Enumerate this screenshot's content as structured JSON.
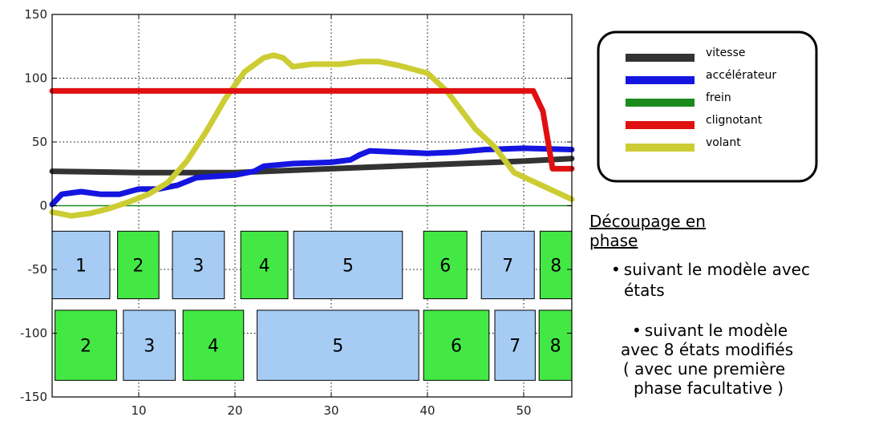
{
  "chart_data": {
    "type": "line",
    "xlim": [
      1,
      55
    ],
    "ylim": [
      -150,
      150
    ],
    "x_ticks": [
      10,
      20,
      30,
      40,
      50
    ],
    "y_ticks": [
      150,
      100,
      50,
      0,
      -50,
      -100,
      -150
    ],
    "grid": true,
    "legend_position": "top-right",
    "series": [
      {
        "name": "vitesse",
        "color": "#333333",
        "points": [
          [
            1,
            27
          ],
          [
            10,
            26
          ],
          [
            20,
            26
          ],
          [
            30,
            29
          ],
          [
            40,
            32
          ],
          [
            50,
            35
          ],
          [
            55,
            37
          ]
        ]
      },
      {
        "name": "accélérateur",
        "color": "#1515e0",
        "points": [
          [
            1,
            1
          ],
          [
            2,
            9
          ],
          [
            4,
            11
          ],
          [
            6,
            9
          ],
          [
            8,
            9
          ],
          [
            10,
            13
          ],
          [
            12,
            13
          ],
          [
            14,
            16
          ],
          [
            16,
            22
          ],
          [
            18,
            23
          ],
          [
            20,
            24
          ],
          [
            22,
            27
          ],
          [
            23,
            31
          ],
          [
            26,
            33
          ],
          [
            30,
            34
          ],
          [
            32,
            36
          ],
          [
            33,
            40
          ],
          [
            34,
            43
          ],
          [
            37,
            42
          ],
          [
            40,
            41
          ],
          [
            43,
            42
          ],
          [
            46,
            44
          ],
          [
            50,
            45
          ],
          [
            55,
            44
          ]
        ]
      },
      {
        "name": "frein",
        "color": "#1a8a1a",
        "points": [
          [
            1,
            0
          ],
          [
            55,
            0
          ]
        ]
      },
      {
        "name": "clignotant",
        "color": "#e01010",
        "points": [
          [
            1,
            90
          ],
          [
            51,
            90
          ],
          [
            52,
            74
          ],
          [
            53,
            29
          ],
          [
            55,
            29
          ]
        ]
      },
      {
        "name": "volant",
        "color": "#cccc33",
        "points": [
          [
            1,
            -5
          ],
          [
            3,
            -8
          ],
          [
            5,
            -6
          ],
          [
            7,
            -2
          ],
          [
            9,
            3
          ],
          [
            11,
            9
          ],
          [
            13,
            18
          ],
          [
            15,
            35
          ],
          [
            17,
            58
          ],
          [
            19,
            84
          ],
          [
            21,
            105
          ],
          [
            23,
            116
          ],
          [
            24,
            118
          ],
          [
            25,
            116
          ],
          [
            26,
            109
          ],
          [
            28,
            111
          ],
          [
            31,
            111
          ],
          [
            33,
            113
          ],
          [
            35,
            113
          ],
          [
            37,
            110
          ],
          [
            39,
            106
          ],
          [
            40,
            104
          ],
          [
            42,
            90
          ],
          [
            44,
            70
          ],
          [
            45,
            60
          ],
          [
            47,
            46
          ],
          [
            49,
            26
          ],
          [
            51,
            19
          ],
          [
            53,
            12
          ],
          [
            55,
            5
          ]
        ]
      }
    ],
    "phase_rows": [
      {
        "y_top": -20,
        "y_bottom": -73,
        "boxes": [
          {
            "label": "1",
            "x0": 1,
            "x1": 7,
            "color": "#a6ccf4"
          },
          {
            "label": "2",
            "x0": 7.8,
            "x1": 12.1,
            "color": "#44e844"
          },
          {
            "label": "3",
            "x0": 13.5,
            "x1": 18.9,
            "color": "#a6ccf4"
          },
          {
            "label": "4",
            "x0": 20.6,
            "x1": 25.5,
            "color": "#44e844"
          },
          {
            "label": "5",
            "x0": 26.1,
            "x1": 37.4,
            "color": "#a6ccf4"
          },
          {
            "label": "6",
            "x0": 39.6,
            "x1": 44.1,
            "color": "#44e844"
          },
          {
            "label": "7",
            "x0": 45.6,
            "x1": 51.1,
            "color": "#a6ccf4"
          },
          {
            "label": "8",
            "x0": 51.7,
            "x1": 55,
            "color": "#44e844"
          }
        ]
      },
      {
        "y_top": -82,
        "y_bottom": -137,
        "boxes": [
          {
            "label": "2",
            "x0": 1.3,
            "x1": 7.7,
            "color": "#44e844"
          },
          {
            "label": "3",
            "x0": 8.4,
            "x1": 13.8,
            "color": "#a6ccf4"
          },
          {
            "label": "4",
            "x0": 14.6,
            "x1": 20.9,
            "color": "#44e844"
          },
          {
            "label": "5",
            "x0": 22.3,
            "x1": 39.1,
            "color": "#a6ccf4"
          },
          {
            "label": "6",
            "x0": 39.6,
            "x1": 46.4,
            "color": "#44e844"
          },
          {
            "label": "7",
            "x0": 47,
            "x1": 51.2,
            "color": "#a6ccf4"
          },
          {
            "label": "8",
            "x0": 51.6,
            "x1": 55,
            "color": "#44e844"
          }
        ]
      }
    ]
  },
  "annotation": {
    "heading": "Découpage en phase",
    "item1_line1": "suivant le modèle avec",
    "item1_line2": "états",
    "item2_line1": "suivant le modèle",
    "item2_line2": "avec 8 états modifiés",
    "item2_line3": "( avec une première",
    "item2_line4": "phase facultative )"
  }
}
